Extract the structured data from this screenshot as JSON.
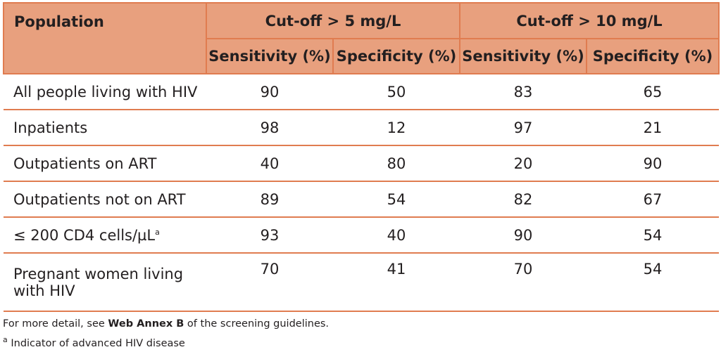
{
  "table": {
    "header": {
      "population": "Population",
      "group1": "Cut-off > 5 mg/L",
      "group2": "Cut-off > 10 mg/L",
      "sensitivity": "Sensitivity (%)",
      "specificity": "Specificity (%)"
    },
    "rows": [
      {
        "label": "All people living with HIV",
        "sup": "",
        "values": [
          "90",
          "50",
          "83",
          "65"
        ]
      },
      {
        "label": "Inpatients",
        "sup": "",
        "values": [
          "98",
          "12",
          "97",
          "21"
        ]
      },
      {
        "label": "Outpatients on ART",
        "sup": "",
        "values": [
          "40",
          "80",
          "20",
          "90"
        ]
      },
      {
        "label": "Outpatients not on ART",
        "sup": "",
        "values": [
          "89",
          "54",
          "82",
          "67"
        ]
      },
      {
        "label": "≤ 200 CD4 cells/µL",
        "sup": "a",
        "values": [
          "93",
          "40",
          "90",
          "54"
        ]
      },
      {
        "label": "Pregnant women living with HIV",
        "sup": "",
        "values": [
          "70",
          "41",
          "70",
          "54"
        ]
      }
    ]
  },
  "notes": {
    "detail_prefix": "For more detail, see ",
    "detail_bold": "Web Annex B",
    "detail_suffix": " of the screening guidelines.",
    "footnote_mark": "a",
    "footnote_text": " Indicator of advanced HIV disease"
  },
  "colors": {
    "header_fill": "#e8a07e",
    "rule": "#e07c50"
  }
}
